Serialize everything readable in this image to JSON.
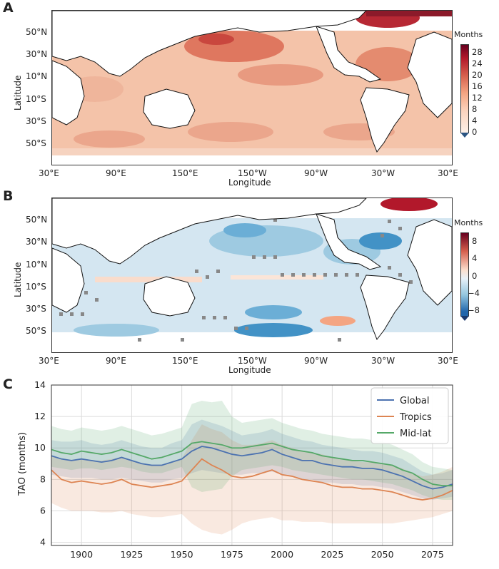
{
  "panels": {
    "a": {
      "letter": "A",
      "ylabel": "Latitude",
      "xlabel": "Longitude",
      "lat_ticks": [
        "50°N",
        "30°N",
        "10°N",
        "10°S",
        "30°S",
        "50°S"
      ],
      "lon_ticks": [
        "30°E",
        "90°E",
        "150°E",
        "150°W",
        "90°W",
        "30°W",
        "30°E"
      ],
      "colorbar_title": "Months",
      "colorbar_ticks": [
        "28",
        "24",
        "20",
        "16",
        "12",
        "8",
        "4",
        "0"
      ]
    },
    "b": {
      "letter": "B",
      "ylabel": "Latitude",
      "xlabel": "Longitude",
      "lat_ticks": [
        "50°N",
        "30°N",
        "10°N",
        "10°S",
        "30°S",
        "50°S"
      ],
      "lon_ticks": [
        "30°E",
        "90°E",
        "150°E",
        "150°W",
        "90°W",
        "30°W",
        "30°E"
      ],
      "colorbar_title": "Months",
      "colorbar_ticks": [
        "8",
        "4",
        "0",
        "−4",
        "−8"
      ]
    },
    "c": {
      "letter": "C"
    }
  },
  "colors": {
    "global": "#4c72b0",
    "tropics": "#dd8452",
    "midlat": "#55a868"
  },
  "chart_data": {
    "type": "line",
    "ylabel": "TAO (months)",
    "xlabel": "",
    "xlim": [
      1885,
      2085
    ],
    "ylim": [
      3.8,
      14
    ],
    "x_ticks": [
      1900,
      1925,
      1950,
      1975,
      2000,
      2025,
      2050,
      2075
    ],
    "y_ticks": [
      4,
      6,
      8,
      10,
      12,
      14
    ],
    "grid": true,
    "legend_position": "top-right",
    "x": [
      1885,
      1890,
      1895,
      1900,
      1905,
      1910,
      1915,
      1920,
      1925,
      1930,
      1935,
      1940,
      1945,
      1950,
      1955,
      1960,
      1965,
      1970,
      1975,
      1980,
      1985,
      1990,
      1995,
      2000,
      2005,
      2010,
      2015,
      2020,
      2025,
      2030,
      2035,
      2040,
      2045,
      2050,
      2055,
      2060,
      2065,
      2070,
      2075,
      2080,
      2085
    ],
    "series": [
      {
        "name": "Global",
        "key": "global",
        "values": [
          9.5,
          9.3,
          9.2,
          9.3,
          9.2,
          9.1,
          9.2,
          9.4,
          9.2,
          9.0,
          8.9,
          8.9,
          9.1,
          9.3,
          9.8,
          10.1,
          10.0,
          9.8,
          9.6,
          9.5,
          9.6,
          9.7,
          9.9,
          9.6,
          9.4,
          9.2,
          9.2,
          9.0,
          8.9,
          8.8,
          8.8,
          8.7,
          8.7,
          8.6,
          8.4,
          8.2,
          7.9,
          7.6,
          7.4,
          7.5,
          7.7
        ],
        "band": [
          [
            8.3,
            10.5
          ],
          [
            8.2,
            10.4
          ],
          [
            8.1,
            10.4
          ],
          [
            8.1,
            10.5
          ],
          [
            8.1,
            10.3
          ],
          [
            8.0,
            10.2
          ],
          [
            8.0,
            10.3
          ],
          [
            8.1,
            10.5
          ],
          [
            8.0,
            10.3
          ],
          [
            7.9,
            10.1
          ],
          [
            7.8,
            10.0
          ],
          [
            7.8,
            10.0
          ],
          [
            8.0,
            10.3
          ],
          [
            8.1,
            10.5
          ],
          [
            8.4,
            11.5
          ],
          [
            8.6,
            11.8
          ],
          [
            8.5,
            11.6
          ],
          [
            8.4,
            11.4
          ],
          [
            8.3,
            11.1
          ],
          [
            8.3,
            10.8
          ],
          [
            8.4,
            10.9
          ],
          [
            8.4,
            11.0
          ],
          [
            8.5,
            11.2
          ],
          [
            8.3,
            10.9
          ],
          [
            8.2,
            10.7
          ],
          [
            8.0,
            10.5
          ],
          [
            8.0,
            10.4
          ],
          [
            7.8,
            10.2
          ],
          [
            7.8,
            10.1
          ],
          [
            7.7,
            10.0
          ],
          [
            7.7,
            9.9
          ],
          [
            7.6,
            9.8
          ],
          [
            7.6,
            9.8
          ],
          [
            7.5,
            9.7
          ],
          [
            7.4,
            9.5
          ],
          [
            7.2,
            9.3
          ],
          [
            7.0,
            8.9
          ],
          [
            6.8,
            8.5
          ],
          [
            6.7,
            8.3
          ],
          [
            6.8,
            8.4
          ],
          [
            6.9,
            8.6
          ]
        ]
      },
      {
        "name": "Tropics",
        "key": "tropics",
        "values": [
          8.6,
          8.0,
          7.8,
          7.9,
          7.8,
          7.7,
          7.8,
          8.0,
          7.7,
          7.6,
          7.5,
          7.6,
          7.7,
          7.9,
          8.6,
          9.3,
          8.9,
          8.6,
          8.2,
          8.1,
          8.2,
          8.4,
          8.6,
          8.3,
          8.2,
          8.0,
          7.9,
          7.8,
          7.6,
          7.5,
          7.5,
          7.4,
          7.4,
          7.3,
          7.2,
          7.0,
          6.8,
          6.7,
          6.8,
          7.0,
          7.3
        ],
        "band": [
          [
            6.5,
            9.5
          ],
          [
            6.2,
            9.3
          ],
          [
            6.0,
            9.2
          ],
          [
            6.0,
            9.3
          ],
          [
            6.0,
            9.2
          ],
          [
            5.9,
            9.2
          ],
          [
            5.9,
            9.3
          ],
          [
            6.0,
            9.4
          ],
          [
            5.8,
            9.2
          ],
          [
            5.7,
            9.0
          ],
          [
            5.6,
            8.9
          ],
          [
            5.6,
            8.9
          ],
          [
            5.7,
            9.1
          ],
          [
            5.8,
            9.3
          ],
          [
            5.2,
            10.5
          ],
          [
            4.8,
            11.5
          ],
          [
            4.6,
            11.2
          ],
          [
            4.5,
            11.0
          ],
          [
            4.8,
            10.5
          ],
          [
            5.2,
            10.2
          ],
          [
            5.4,
            10.2
          ],
          [
            5.5,
            10.3
          ],
          [
            5.6,
            10.5
          ],
          [
            5.4,
            10.2
          ],
          [
            5.4,
            10.0
          ],
          [
            5.3,
            9.8
          ],
          [
            5.3,
            9.7
          ],
          [
            5.3,
            9.6
          ],
          [
            5.2,
            9.4
          ],
          [
            5.2,
            9.3
          ],
          [
            5.2,
            9.2
          ],
          [
            5.2,
            9.1
          ],
          [
            5.2,
            9.1
          ],
          [
            5.2,
            9.0
          ],
          [
            5.2,
            8.9
          ],
          [
            5.3,
            8.7
          ],
          [
            5.4,
            8.4
          ],
          [
            5.5,
            8.2
          ],
          [
            5.6,
            8.3
          ],
          [
            5.8,
            8.5
          ],
          [
            6.0,
            8.8
          ]
        ]
      },
      {
        "name": "Mid-lat",
        "key": "midlat",
        "values": [
          9.9,
          9.7,
          9.6,
          9.8,
          9.7,
          9.6,
          9.7,
          9.9,
          9.7,
          9.5,
          9.3,
          9.4,
          9.6,
          9.8,
          10.3,
          10.4,
          10.3,
          10.2,
          10.0,
          10.0,
          10.1,
          10.2,
          10.3,
          10.1,
          9.9,
          9.8,
          9.7,
          9.5,
          9.4,
          9.3,
          9.2,
          9.2,
          9.1,
          9.0,
          8.9,
          8.6,
          8.4,
          8.0,
          7.7,
          7.6,
          7.6
        ],
        "band": [
          [
            8.8,
            11.4
          ],
          [
            8.7,
            11.2
          ],
          [
            8.6,
            11.1
          ],
          [
            8.7,
            11.3
          ],
          [
            8.7,
            11.2
          ],
          [
            8.6,
            11.1
          ],
          [
            8.7,
            11.2
          ],
          [
            8.8,
            11.4
          ],
          [
            8.7,
            11.2
          ],
          [
            8.5,
            11.0
          ],
          [
            8.4,
            10.8
          ],
          [
            8.4,
            10.9
          ],
          [
            8.6,
            11.1
          ],
          [
            8.8,
            11.3
          ],
          [
            7.5,
            12.8
          ],
          [
            7.2,
            13.0
          ],
          [
            7.3,
            12.9
          ],
          [
            7.4,
            13.0
          ],
          [
            8.2,
            12.0
          ],
          [
            8.6,
            11.6
          ],
          [
            8.7,
            11.7
          ],
          [
            8.8,
            11.8
          ],
          [
            8.9,
            11.9
          ],
          [
            8.8,
            11.6
          ],
          [
            8.6,
            11.4
          ],
          [
            8.5,
            11.2
          ],
          [
            8.4,
            11.1
          ],
          [
            8.3,
            10.9
          ],
          [
            8.2,
            10.8
          ],
          [
            8.1,
            10.7
          ],
          [
            8.0,
            10.6
          ],
          [
            8.0,
            10.6
          ],
          [
            7.9,
            10.5
          ],
          [
            7.8,
            10.4
          ],
          [
            7.7,
            10.2
          ],
          [
            7.5,
            9.9
          ],
          [
            7.3,
            9.6
          ],
          [
            7.0,
            9.1
          ],
          [
            6.8,
            8.8
          ],
          [
            6.7,
            8.7
          ],
          [
            6.7,
            8.6
          ]
        ]
      }
    ]
  }
}
